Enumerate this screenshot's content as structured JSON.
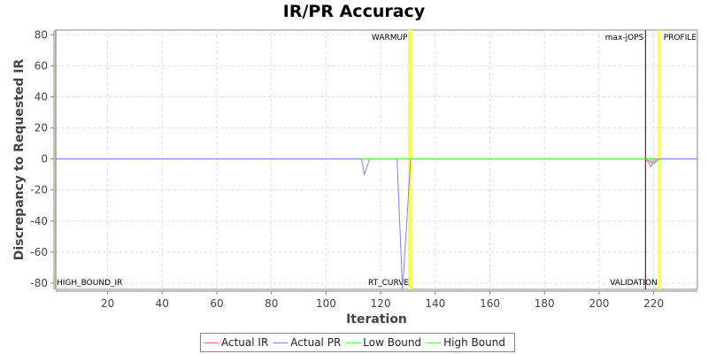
{
  "chart_data": {
    "type": "line",
    "title": "IR/PR Accuracy",
    "xlabel": "Iteration",
    "ylabel": "Discrepancy to Requested IR",
    "xlim": [
      1,
      236
    ],
    "ylim": [
      -84,
      83
    ],
    "xticks": [
      20,
      40,
      60,
      80,
      100,
      120,
      140,
      160,
      180,
      200,
      220
    ],
    "yticks": [
      -80,
      -60,
      -40,
      -20,
      0,
      20,
      40,
      60,
      80
    ],
    "grid": true,
    "legend_position": "bottom",
    "series": [
      {
        "name": "Actual IR",
        "color": "#ff6060",
        "points": [
          [
            1,
            0
          ],
          [
            217,
            0
          ],
          [
            218,
            -2
          ],
          [
            219,
            -5
          ],
          [
            220,
            -1
          ],
          [
            221,
            0
          ],
          [
            236,
            0
          ]
        ]
      },
      {
        "name": "Actual PR",
        "color": "#8080ff",
        "points": [
          [
            1,
            0
          ],
          [
            113,
            0
          ],
          [
            114,
            -10
          ],
          [
            116,
            0
          ],
          [
            126,
            0
          ],
          [
            128,
            -84
          ],
          [
            131,
            0
          ],
          [
            217,
            0
          ],
          [
            218,
            -1
          ],
          [
            220,
            -3
          ],
          [
            222,
            0
          ],
          [
            236,
            0
          ]
        ]
      },
      {
        "name": "Low Bound",
        "color": "#40ff40",
        "points": [
          [
            113,
            0
          ],
          [
            116,
            0
          ],
          [
            127,
            0
          ],
          [
            130,
            0
          ],
          [
            217,
            0
          ],
          [
            221,
            0
          ]
        ]
      },
      {
        "name": "High Bound",
        "color": "#40ff40",
        "points": [
          [
            218,
            0
          ],
          [
            219,
            -1
          ],
          [
            220,
            -3
          ],
          [
            221,
            0
          ]
        ]
      }
    ],
    "markers": [
      {
        "label": "HIGH_BOUND_IR",
        "x": 1,
        "color": "#808040",
        "label_pos": "bottom"
      },
      {
        "label": "WARMUP",
        "x": 130.5,
        "color": "#ffff40",
        "label_pos": "top"
      },
      {
        "label": "RT_CURVE",
        "x": 131,
        "color": "#ffff40",
        "label_pos": "bottom"
      },
      {
        "label": "max-jOPS",
        "x": 217,
        "color": "#c00000",
        "label_pos": "top"
      },
      {
        "label": "PROFILE",
        "x": 222,
        "color": "#ffff40",
        "label_pos": "top"
      },
      {
        "label": "VALIDATION",
        "x": 222,
        "color": "#ffff40",
        "label_pos": "bottom"
      }
    ]
  }
}
